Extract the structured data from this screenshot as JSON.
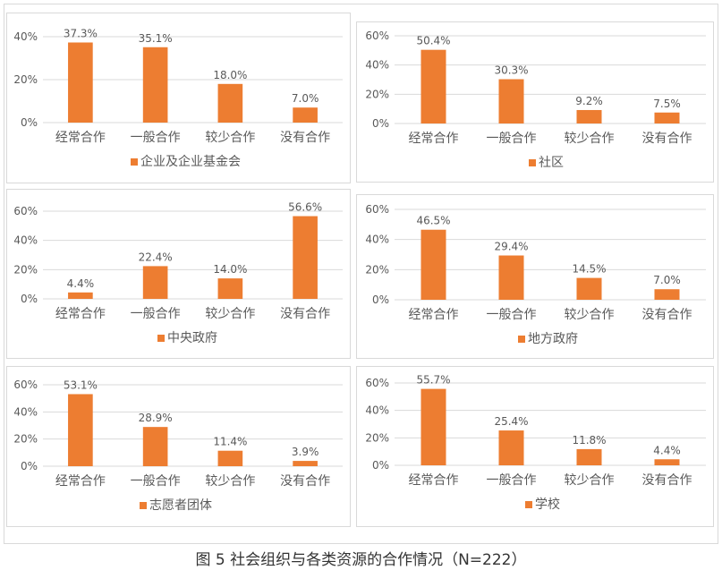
{
  "caption": "图 5 社会组织与各类资源的合作情况（N=222）",
  "colors": {
    "bar": "#ED7D31",
    "grid": "#d9d9d9",
    "text": "#595959"
  },
  "chart_data": [
    {
      "type": "bar",
      "categories": [
        "经常合作",
        "一般合作",
        "较少合作",
        "没有合作"
      ],
      "series": [
        {
          "name": "企业及企业基金会",
          "values": [
            37.3,
            35.1,
            18.0,
            7.0
          ]
        }
      ],
      "data_labels": [
        "37.3%",
        "35.1%",
        "18.0%",
        "7.0%"
      ],
      "y_ticks": [
        "0%",
        "20%",
        "40%"
      ],
      "ylim": [
        0,
        40
      ],
      "legend": "bottom-left"
    },
    {
      "type": "bar",
      "categories": [
        "经常合作",
        "一般合作",
        "较少合作",
        "没有合作"
      ],
      "series": [
        {
          "name": "社区",
          "values": [
            50.4,
            30.3,
            9.2,
            7.5
          ]
        }
      ],
      "data_labels": [
        "50.4%",
        "30.3%",
        "9.2%",
        "7.5%"
      ],
      "y_ticks": [
        "0%",
        "20%",
        "40%",
        "60%"
      ],
      "ylim": [
        0,
        60
      ],
      "legend": "bottom-center"
    },
    {
      "type": "bar",
      "categories": [
        "经常合作",
        "一般合作",
        "较少合作",
        "没有合作"
      ],
      "series": [
        {
          "name": "中央政府",
          "values": [
            4.4,
            22.4,
            14.0,
            56.6
          ]
        }
      ],
      "data_labels": [
        "4.4%",
        "22.4%",
        "14.0%",
        "56.6%"
      ],
      "y_ticks": [
        "0%",
        "20%",
        "40%",
        "60%"
      ],
      "ylim": [
        0,
        60
      ],
      "legend": "bottom-center"
    },
    {
      "type": "bar",
      "categories": [
        "经常合作",
        "一般合作",
        "较少合作",
        "没有合作"
      ],
      "series": [
        {
          "name": "地方政府",
          "values": [
            46.5,
            29.4,
            14.5,
            7.0
          ]
        }
      ],
      "data_labels": [
        "46.5%",
        "29.4%",
        "14.5%",
        "7.0%"
      ],
      "y_ticks": [
        "0%",
        "20%",
        "40%",
        "60%"
      ],
      "ylim": [
        0,
        60
      ],
      "legend": "bottom-center"
    },
    {
      "type": "bar",
      "categories": [
        "经常合作",
        "一般合作",
        "较少合作",
        "没有合作"
      ],
      "series": [
        {
          "name": "志愿者团体",
          "values": [
            53.1,
            28.9,
            11.4,
            3.9
          ]
        }
      ],
      "data_labels": [
        "53.1%",
        "28.9%",
        "11.4%",
        "3.9%"
      ],
      "y_ticks": [
        "0%",
        "20%",
        "40%",
        "60%"
      ],
      "ylim": [
        0,
        60
      ],
      "legend": "bottom-left"
    },
    {
      "type": "bar",
      "categories": [
        "经常合作",
        "一般合作",
        "较少合作",
        "没有合作"
      ],
      "series": [
        {
          "name": "学校",
          "values": [
            55.7,
            25.4,
            11.8,
            4.4
          ]
        }
      ],
      "data_labels": [
        "55.7%",
        "25.4%",
        "11.8%",
        "4.4%"
      ],
      "y_ticks": [
        "0%",
        "20%",
        "40%",
        "60%"
      ],
      "ylim": [
        0,
        60
      ],
      "legend": "bottom-center"
    }
  ]
}
